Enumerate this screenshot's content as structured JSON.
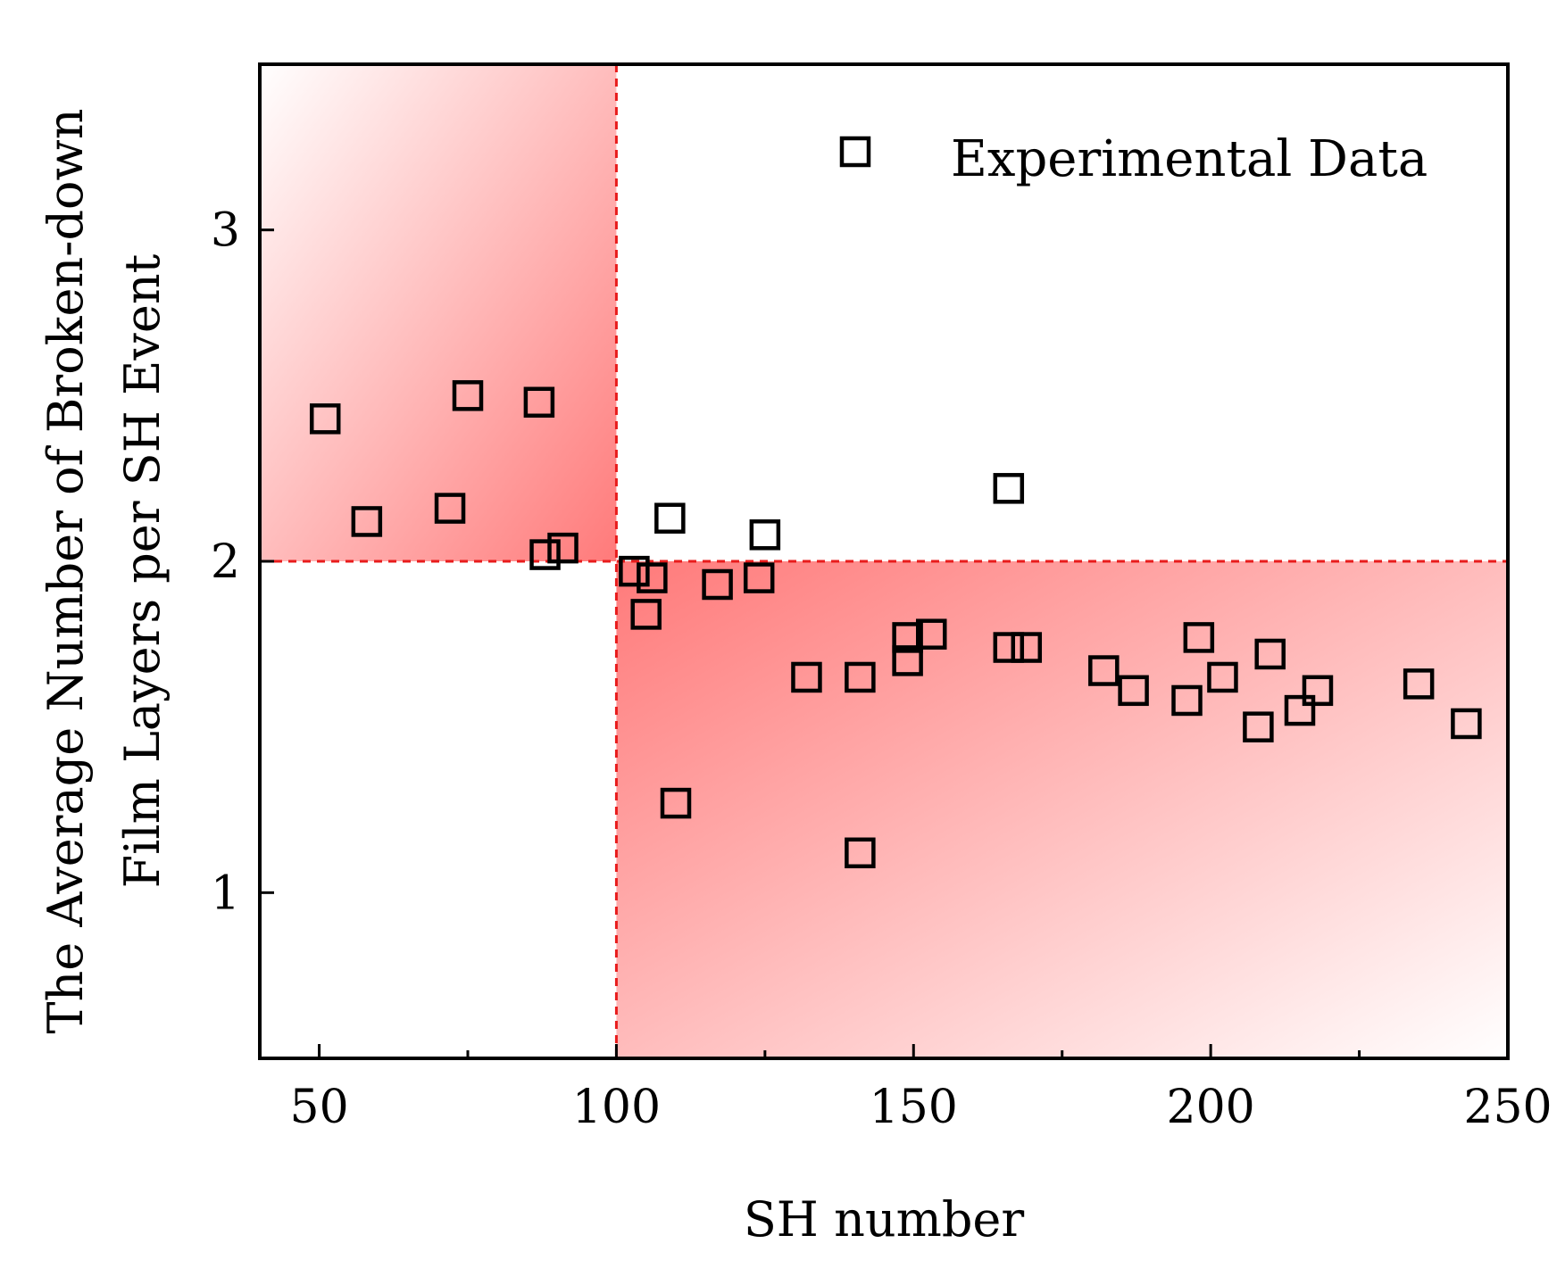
{
  "chart_data": {
    "type": "scatter",
    "xlabel": "SH number",
    "ylabel_line1": "The Average Number of Broken-down",
    "ylabel_line2": "Film Layers per SH Event",
    "xlim": [
      40,
      250
    ],
    "ylim": [
      0.5,
      3.5
    ],
    "x_ticks": [
      50,
      100,
      150,
      200,
      250
    ],
    "y_ticks": [
      1,
      2,
      3
    ],
    "highlight_color": "#e81c1c",
    "shade_color": "#ff7a7a",
    "marker_color": "#000000",
    "threshold_x": 100,
    "threshold_y": 2,
    "grid": false,
    "legend_position": "top-right",
    "legend": [
      "Experimental Data"
    ],
    "series": [
      {
        "name": "Experimental Data",
        "x": [
          51,
          58,
          72,
          75,
          87,
          88,
          91,
          103,
          105,
          106,
          109,
          110,
          117,
          124,
          125,
          132,
          141,
          141,
          149,
          149,
          153,
          166,
          166,
          169,
          182,
          187,
          196,
          198,
          202,
          208,
          210,
          215,
          218,
          235,
          243
        ],
        "y": [
          2.43,
          2.12,
          2.16,
          2.5,
          2.48,
          2.02,
          2.04,
          1.97,
          1.84,
          1.95,
          2.13,
          1.27,
          1.93,
          1.95,
          2.08,
          1.65,
          1.65,
          1.12,
          1.77,
          1.7,
          1.78,
          1.74,
          2.22,
          1.74,
          1.67,
          1.61,
          1.58,
          1.77,
          1.65,
          1.5,
          1.72,
          1.55,
          1.61,
          1.63,
          1.51
        ]
      }
    ]
  }
}
